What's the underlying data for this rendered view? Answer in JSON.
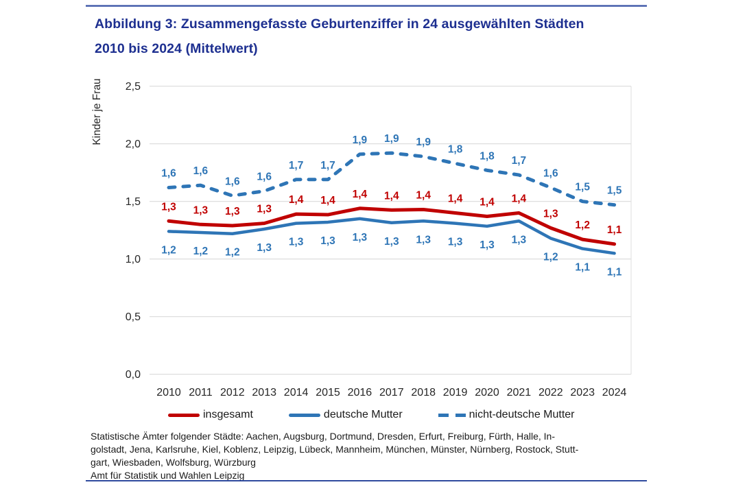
{
  "page": {
    "title_line1": "Abbildung 3: Zusammengefasste Geburtenziffer in 24 ausgewählten Städten",
    "title_line2": "2010 bis 2024 (Mittelwert)",
    "source_lines": [
      "Statistische Ämter folgender Städte: Aachen, Augsburg, Dortmund, Dresden, Erfurt, Freiburg, Fürth, Halle, In-",
      "golstadt, Jena, Karlsruhe, Kiel, Koblenz, Leipzig, Lübeck, Mannheim, München, Münster, Nürnberg, Rostock, Stutt-",
      "gart, Wiesbaden, Wolfsburg, Würzburg",
      "Amt für Statistik und Wahlen Leipzig"
    ]
  },
  "colors": {
    "title": "#1d2f90",
    "red": "#c00000",
    "blue": "#2e75b6",
    "grid": "#d9d9d9",
    "grid_right": "#e3e3e3",
    "axis_text": "#262626"
  },
  "chart_data": {
    "type": "line",
    "title": "Abbildung 3: Zusammengefasste Geburtenziffer in 24 ausgewählten Städten 2010 bis 2024 (Mittelwert)",
    "xlabel": "",
    "ylabel": "Kinder je Frau",
    "ylim": [
      0.0,
      2.5
    ],
    "grid": "horizontal",
    "legend_position": "bottom",
    "x": [
      "2010",
      "2011",
      "2012",
      "2013",
      "2014",
      "2015",
      "2016",
      "2017",
      "2018",
      "2019",
      "2020",
      "2021",
      "2022",
      "2023",
      "2024"
    ],
    "ytick_values": [
      2.5,
      2.0,
      1.5,
      1.0,
      0.5,
      0.0
    ],
    "ytick_labels": [
      "2,5",
      "2,0",
      "1,5",
      "1,0",
      "0,5",
      "0,0"
    ],
    "series": [
      {
        "name": "insgesamt",
        "style": "solid",
        "color": "#c00000",
        "labels": [
          "1,3",
          "1,3",
          "1,3",
          "1,3",
          "1,4",
          "1,4",
          "1,4",
          "1,4",
          "1,4",
          "1,4",
          "1,4",
          "1,4",
          "1,3",
          "1,2",
          "1,1"
        ],
        "values": [
          1.33,
          1.3,
          1.29,
          1.31,
          1.39,
          1.385,
          1.44,
          1.425,
          1.43,
          1.4,
          1.37,
          1.4,
          1.27,
          1.17,
          1.13
        ]
      },
      {
        "name": "deutsche Mutter",
        "style": "solid",
        "color": "#2e75b6",
        "labels": [
          "1,2",
          "1,2",
          "1,2",
          "1,3",
          "1,3",
          "1,3",
          "1,3",
          "1,3",
          "1,3",
          "1,3",
          "1,3",
          "1,3",
          "1,2",
          "1,1",
          "1,1"
        ],
        "values": [
          1.24,
          1.23,
          1.22,
          1.26,
          1.31,
          1.32,
          1.35,
          1.315,
          1.33,
          1.31,
          1.285,
          1.33,
          1.18,
          1.09,
          1.05
        ]
      },
      {
        "name": "nicht-deutsche Mutter",
        "style": "dashed",
        "color": "#2e75b6",
        "labels": [
          "1,6",
          "1,6",
          "1,6",
          "1,6",
          "1,7",
          "1,7",
          "1,9",
          "1,9",
          "1,9",
          "1,8",
          "1,8",
          "1,7",
          "1,6",
          "1,5",
          "1,5"
        ],
        "values": [
          1.62,
          1.64,
          1.55,
          1.59,
          1.69,
          1.69,
          1.91,
          1.92,
          1.89,
          1.83,
          1.77,
          1.73,
          1.62,
          1.5,
          1.47
        ]
      }
    ]
  }
}
